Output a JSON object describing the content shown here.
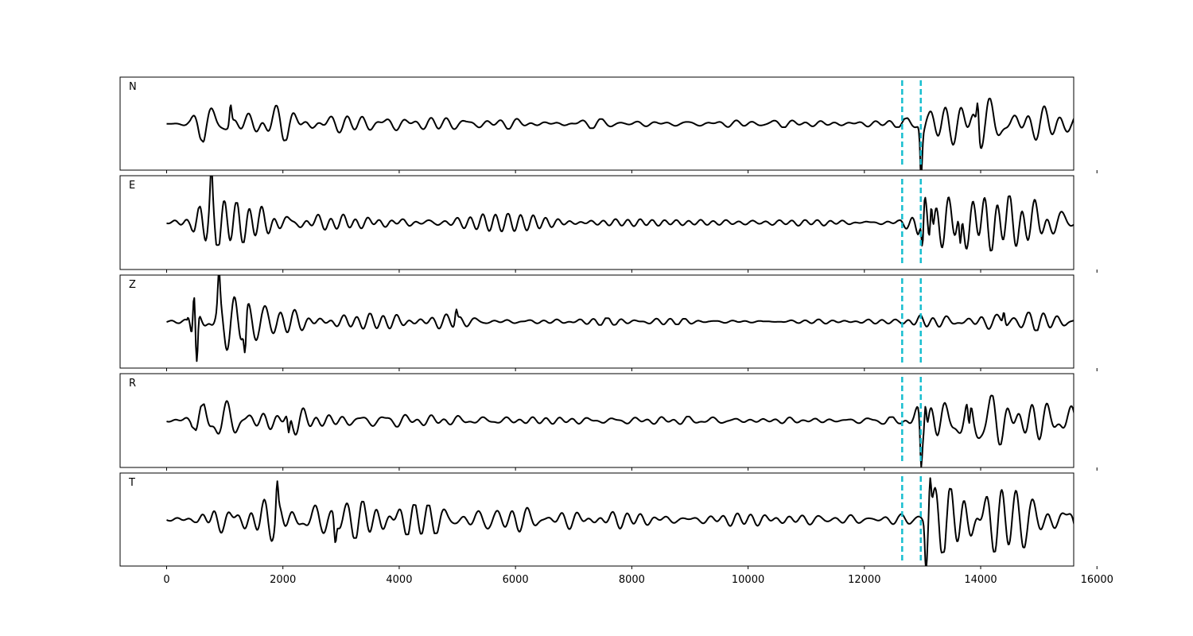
{
  "chart_data": {
    "type": "line",
    "title": "",
    "xlabel": "",
    "ylabel": "",
    "xlim": [
      -800,
      15600
    ],
    "x_ticks": [
      0,
      2000,
      4000,
      6000,
      8000,
      10000,
      12000,
      14000,
      16000
    ],
    "x_tick_labels": [
      "0",
      "2000",
      "4000",
      "6000",
      "8000",
      "10000",
      "12000",
      "14000",
      "16000"
    ],
    "grid": false,
    "legend": "none",
    "trace_color": "#000000",
    "pick_color": "#17becf",
    "samples": [
      0,
      15800
    ],
    "vertical_lines": [
      12650,
      12970
    ],
    "series": [
      {
        "name": "N",
        "envelope": [
          [
            0,
            0.03
          ],
          [
            400,
            0.1
          ],
          [
            650,
            0.45
          ],
          [
            1000,
            0.55
          ],
          [
            1500,
            0.5
          ],
          [
            2200,
            0.35
          ],
          [
            3000,
            0.2
          ],
          [
            4000,
            0.16
          ],
          [
            5000,
            0.13
          ],
          [
            7000,
            0.11
          ],
          [
            9000,
            0.09
          ],
          [
            11000,
            0.08
          ],
          [
            12600,
            0.08
          ],
          [
            12800,
            0.15
          ],
          [
            12950,
            0.2
          ],
          [
            12975,
            1.0
          ],
          [
            13100,
            0.5
          ],
          [
            13600,
            0.55
          ],
          [
            14000,
            0.6
          ],
          [
            14800,
            0.5
          ],
          [
            15800,
            0.35
          ]
        ],
        "events": [
          [
            12975,
            -1.0
          ],
          [
            13950,
            0.7
          ],
          [
            1100,
            0.45
          ]
        ]
      },
      {
        "name": "E",
        "envelope": [
          [
            0,
            0.03
          ],
          [
            400,
            0.12
          ],
          [
            700,
            0.55
          ],
          [
            1200,
            0.45
          ],
          [
            2000,
            0.45
          ],
          [
            3000,
            0.35
          ],
          [
            4000,
            0.32
          ],
          [
            5000,
            0.25
          ],
          [
            7000,
            0.14
          ],
          [
            9000,
            0.1
          ],
          [
            11000,
            0.08
          ],
          [
            12600,
            0.08
          ],
          [
            12850,
            0.3
          ],
          [
            12975,
            0.65
          ],
          [
            13150,
            0.9
          ],
          [
            13500,
            0.6
          ],
          [
            14100,
            0.65
          ],
          [
            15000,
            0.55
          ],
          [
            15800,
            0.35
          ]
        ],
        "events": [
          [
            13000,
            -1.0
          ],
          [
            13150,
            0.95
          ],
          [
            13650,
            -0.8
          ],
          [
            770,
            0.75
          ]
        ]
      },
      {
        "name": "Z",
        "envelope": [
          [
            0,
            0.02
          ],
          [
            350,
            0.05
          ],
          [
            470,
            0.95
          ],
          [
            600,
            0.6
          ],
          [
            1000,
            0.7
          ],
          [
            1500,
            0.55
          ],
          [
            2200,
            0.3
          ],
          [
            3000,
            0.2
          ],
          [
            4200,
            0.16
          ],
          [
            5000,
            0.17
          ],
          [
            6000,
            0.1
          ],
          [
            8000,
            0.07
          ],
          [
            11000,
            0.05
          ],
          [
            12600,
            0.05
          ],
          [
            12800,
            0.15
          ],
          [
            12975,
            0.25
          ],
          [
            13500,
            0.2
          ],
          [
            14000,
            0.25
          ],
          [
            15000,
            0.2
          ],
          [
            15800,
            0.12
          ]
        ],
        "events": [
          [
            470,
            1.0
          ],
          [
            520,
            -1.0
          ],
          [
            900,
            0.8
          ],
          [
            1350,
            -0.75
          ],
          [
            4980,
            0.3
          ],
          [
            14400,
            0.3
          ]
        ]
      },
      {
        "name": "R",
        "envelope": [
          [
            0,
            0.03
          ],
          [
            400,
            0.1
          ],
          [
            700,
            0.45
          ],
          [
            1200,
            0.45
          ],
          [
            2100,
            0.35
          ],
          [
            3000,
            0.18
          ],
          [
            4000,
            0.14
          ],
          [
            6000,
            0.12
          ],
          [
            8000,
            0.1
          ],
          [
            11000,
            0.07
          ],
          [
            12600,
            0.08
          ],
          [
            12850,
            0.25
          ],
          [
            12975,
            0.5
          ],
          [
            13100,
            0.7
          ],
          [
            13500,
            0.55
          ],
          [
            14000,
            0.6
          ],
          [
            15000,
            0.45
          ],
          [
            15800,
            0.35
          ]
        ],
        "events": [
          [
            12975,
            -1.0
          ],
          [
            13050,
            0.75
          ],
          [
            13800,
            -0.6
          ],
          [
            2100,
            -0.45
          ]
        ]
      },
      {
        "name": "T",
        "envelope": [
          [
            0,
            0.05
          ],
          [
            500,
            0.12
          ],
          [
            800,
            0.5
          ],
          [
            1500,
            0.5
          ],
          [
            2500,
            0.5
          ],
          [
            3000,
            0.45
          ],
          [
            4000,
            0.35
          ],
          [
            5000,
            0.3
          ],
          [
            6000,
            0.3
          ],
          [
            8000,
            0.2
          ],
          [
            10000,
            0.15
          ],
          [
            12000,
            0.12
          ],
          [
            12600,
            0.12
          ],
          [
            12850,
            0.2
          ],
          [
            12975,
            0.45
          ],
          [
            13100,
            0.85
          ],
          [
            13500,
            0.7
          ],
          [
            14200,
            0.75
          ],
          [
            15000,
            0.6
          ],
          [
            15800,
            0.5
          ]
        ],
        "events": [
          [
            13060,
            -0.95
          ],
          [
            13130,
            1.0
          ],
          [
            1900,
            0.7
          ],
          [
            2900,
            -0.55
          ]
        ]
      }
    ]
  }
}
